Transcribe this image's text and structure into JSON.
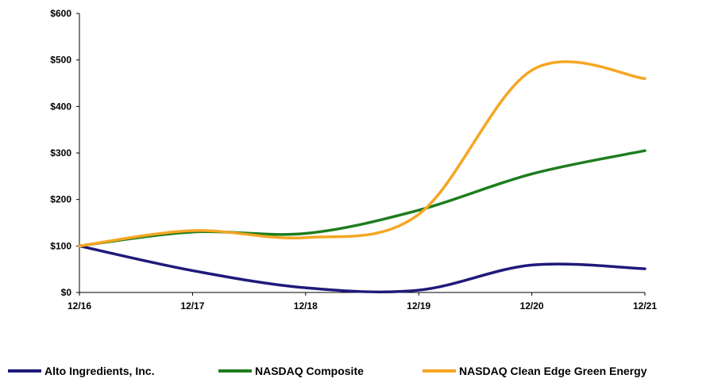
{
  "chart_data": {
    "type": "line",
    "title": "",
    "xlabel": "",
    "ylabel": "",
    "categories": [
      "12/16",
      "12/17",
      "12/18",
      "12/19",
      "12/20",
      "12/21"
    ],
    "ylim": [
      0,
      600
    ],
    "y_ticks": [
      "$0",
      "$100",
      "$200",
      "$300",
      "$400",
      "$500",
      "$600"
    ],
    "y_tick_values": [
      0,
      100,
      200,
      300,
      400,
      500,
      600
    ],
    "grid": false,
    "legend_position": "bottom",
    "series": [
      {
        "name": "Alto Ingredients, Inc.",
        "color": "#1f1a7a",
        "values": [
          100,
          47,
          10,
          5,
          59,
          51
        ]
      },
      {
        "name": "NASDAQ Composite",
        "color": "#1e7d1e",
        "values": [
          100,
          130,
          127,
          177,
          255,
          305
        ]
      },
      {
        "name": "NASDAQ Clean Edge Green Energy",
        "color": "#f5a623",
        "values": [
          100,
          133,
          118,
          168,
          478,
          460
        ]
      }
    ]
  }
}
